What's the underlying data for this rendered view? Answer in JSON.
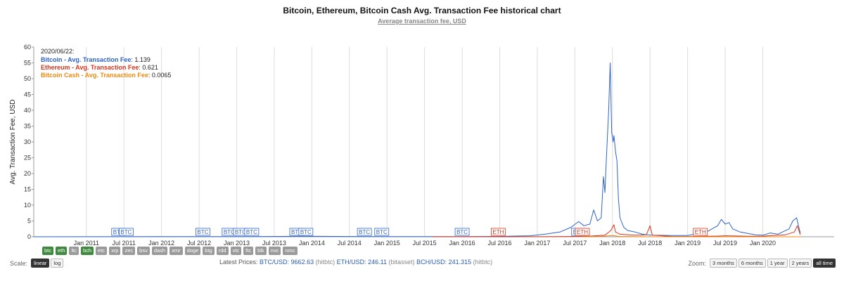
{
  "header": {
    "title": "Bitcoin, Ethereum, Bitcoin Cash Avg. Transaction Fee historical chart",
    "subtitle": "Average transaction fee, USD"
  },
  "tooltip": {
    "date": "2020/06/22:",
    "rows": [
      {
        "label": "Bitcoin - Avg. Transaction Fee",
        "value": "1.139",
        "color": "#2e63c8"
      },
      {
        "label": "Ethereum - Avg. Transaction Fee",
        "value": "0.621",
        "color": "#d6351c"
      },
      {
        "label": "Bitcoin Cash - Avg. Transaction Fee",
        "value": "0.0065",
        "color": "#f08a10"
      }
    ]
  },
  "chart_data": {
    "type": "line",
    "ylabel": "Avg. Transaction Fee, USD",
    "ylim": [
      0,
      60
    ],
    "yticks": [
      0,
      5,
      10,
      15,
      20,
      25,
      30,
      35,
      40,
      45,
      50,
      55,
      60
    ],
    "xlim": [
      2010.3,
      2020.95
    ],
    "xticks": [
      {
        "label": "Jan 2011",
        "t": 2011.0
      },
      {
        "label": "Jul 2011",
        "t": 2011.5
      },
      {
        "label": "Jan 2012",
        "t": 2012.0
      },
      {
        "label": "Jul 2012",
        "t": 2012.5
      },
      {
        "label": "Jan 2013",
        "t": 2013.0
      },
      {
        "label": "Jul 2013",
        "t": 2013.5
      },
      {
        "label": "Jan 2014",
        "t": 2014.0
      },
      {
        "label": "Jul 2014",
        "t": 2014.5
      },
      {
        "label": "Jan 2015",
        "t": 2015.0
      },
      {
        "label": "Jul 2015",
        "t": 2015.5
      },
      {
        "label": "Jan 2016",
        "t": 2016.0
      },
      {
        "label": "Jul 2016",
        "t": 2016.5
      },
      {
        "label": "Jan 2017",
        "t": 2017.0
      },
      {
        "label": "Jul 2017",
        "t": 2017.5
      },
      {
        "label": "Jan 2018",
        "t": 2018.0
      },
      {
        "label": "Jul 2018",
        "t": 2018.5
      },
      {
        "label": "Jan 2019",
        "t": 2019.0
      },
      {
        "label": "Jul 2019",
        "t": 2019.5
      },
      {
        "label": "Jan 2020",
        "t": 2020.0
      }
    ],
    "grid": true,
    "series": [
      {
        "name": "Bitcoin - Avg. Transaction Fee",
        "color": "#2e63c8",
        "points": [
          [
            2010.3,
            0.0
          ],
          [
            2012.0,
            0.05
          ],
          [
            2013.0,
            0.05
          ],
          [
            2013.9,
            0.15
          ],
          [
            2014.5,
            0.08
          ],
          [
            2015.0,
            0.05
          ],
          [
            2016.0,
            0.05
          ],
          [
            2016.5,
            0.12
          ],
          [
            2016.9,
            0.3
          ],
          [
            2017.1,
            0.8
          ],
          [
            2017.3,
            1.5
          ],
          [
            2017.45,
            3.0
          ],
          [
            2017.55,
            4.8
          ],
          [
            2017.62,
            3.5
          ],
          [
            2017.7,
            4.0
          ],
          [
            2017.75,
            8.5
          ],
          [
            2017.8,
            5.0
          ],
          [
            2017.85,
            6.0
          ],
          [
            2017.88,
            19.0
          ],
          [
            2017.9,
            14.0
          ],
          [
            2017.92,
            25.0
          ],
          [
            2017.95,
            40.0
          ],
          [
            2017.97,
            55.0
          ],
          [
            2017.99,
            33.0
          ],
          [
            2018.01,
            30.0
          ],
          [
            2018.02,
            32.0
          ],
          [
            2018.04,
            27.0
          ],
          [
            2018.06,
            24.0
          ],
          [
            2018.08,
            12.0
          ],
          [
            2018.1,
            6.0
          ],
          [
            2018.15,
            3.0
          ],
          [
            2018.2,
            2.0
          ],
          [
            2018.3,
            1.5
          ],
          [
            2018.4,
            0.8
          ],
          [
            2018.5,
            0.5
          ],
          [
            2018.8,
            0.4
          ],
          [
            2019.0,
            0.4
          ],
          [
            2019.25,
            1.5
          ],
          [
            2019.4,
            3.5
          ],
          [
            2019.45,
            5.5
          ],
          [
            2019.5,
            4.0
          ],
          [
            2019.55,
            4.5
          ],
          [
            2019.6,
            2.5
          ],
          [
            2019.7,
            1.5
          ],
          [
            2019.9,
            0.6
          ],
          [
            2020.0,
            0.5
          ],
          [
            2020.1,
            1.2
          ],
          [
            2020.2,
            0.8
          ],
          [
            2020.35,
            2.5
          ],
          [
            2020.4,
            5.0
          ],
          [
            2020.45,
            6.0
          ],
          [
            2020.48,
            3.0
          ],
          [
            2020.5,
            1.139
          ]
        ]
      },
      {
        "name": "Ethereum - Avg. Transaction Fee",
        "color": "#d6351c",
        "points": [
          [
            2015.6,
            0.0
          ],
          [
            2016.5,
            0.0
          ],
          [
            2017.0,
            0.02
          ],
          [
            2017.4,
            0.1
          ],
          [
            2017.7,
            0.2
          ],
          [
            2017.9,
            0.5
          ],
          [
            2017.98,
            2.0
          ],
          [
            2018.02,
            3.8
          ],
          [
            2018.04,
            1.5
          ],
          [
            2018.1,
            0.8
          ],
          [
            2018.3,
            0.5
          ],
          [
            2018.45,
            0.6
          ],
          [
            2018.5,
            3.5
          ],
          [
            2018.53,
            0.5
          ],
          [
            2018.8,
            0.1
          ],
          [
            2019.0,
            0.1
          ],
          [
            2019.4,
            0.2
          ],
          [
            2019.5,
            0.3
          ],
          [
            2019.8,
            0.15
          ],
          [
            2020.0,
            0.2
          ],
          [
            2020.3,
            0.6
          ],
          [
            2020.42,
            1.5
          ],
          [
            2020.46,
            3.5
          ],
          [
            2020.5,
            0.621
          ]
        ]
      },
      {
        "name": "Bitcoin Cash - Avg. Transaction Fee",
        "color": "#f08a10",
        "points": [
          [
            2017.6,
            0.0
          ],
          [
            2017.9,
            0.2
          ],
          [
            2018.0,
            0.4
          ],
          [
            2018.1,
            0.1
          ],
          [
            2018.5,
            0.01
          ],
          [
            2019.0,
            0.005
          ],
          [
            2020.0,
            0.004
          ],
          [
            2020.5,
            0.0065
          ]
        ]
      }
    ],
    "annotations": [
      {
        "text": "BTC",
        "t": 2011.43,
        "color": "#2e63c8"
      },
      {
        "text": "BTC",
        "t": 2011.53,
        "color": "#2e63c8"
      },
      {
        "text": "BTC",
        "t": 2012.55,
        "color": "#2e63c8"
      },
      {
        "text": "BTC",
        "t": 2012.9,
        "color": "#2e63c8"
      },
      {
        "text": "BTC",
        "t": 2013.05,
        "color": "#2e63c8"
      },
      {
        "text": "BTC",
        "t": 2013.2,
        "color": "#2e63c8"
      },
      {
        "text": "BTC",
        "t": 2013.8,
        "color": "#2e63c8"
      },
      {
        "text": "BTC",
        "t": 2013.92,
        "color": "#2e63c8"
      },
      {
        "text": "BTC",
        "t": 2014.7,
        "color": "#2e63c8"
      },
      {
        "text": "BTC",
        "t": 2014.93,
        "color": "#2e63c8"
      },
      {
        "text": "BTC",
        "t": 2016.0,
        "color": "#2e63c8"
      },
      {
        "text": "BTC",
        "t": 2017.55,
        "color": "#2e63c8"
      },
      {
        "text": "ETH",
        "t": 2016.48,
        "color": "#d6351c"
      },
      {
        "text": "ETH",
        "t": 2017.6,
        "color": "#d6351c"
      },
      {
        "text": "ETH",
        "t": 2019.17,
        "color": "#d6351c"
      }
    ]
  },
  "coin_tags": [
    {
      "label": "btc",
      "active": true
    },
    {
      "label": "eth",
      "active": true
    },
    {
      "label": "ltc",
      "active": false
    },
    {
      "label": "bch",
      "active": true
    },
    {
      "label": "etc",
      "active": false
    },
    {
      "label": "xrp",
      "active": false
    },
    {
      "label": "zec",
      "active": false
    },
    {
      "label": "bsv",
      "active": false
    },
    {
      "label": "dash",
      "active": false
    },
    {
      "label": "xmr",
      "active": false
    },
    {
      "label": "doge",
      "active": false
    },
    {
      "label": "btg",
      "active": false
    },
    {
      "label": "rdd",
      "active": false
    },
    {
      "label": "vtc",
      "active": false
    },
    {
      "label": "ftc",
      "active": false
    },
    {
      "label": "blk",
      "active": false
    },
    {
      "label": "nvc",
      "active": false
    },
    {
      "label": "nmc",
      "active": false
    }
  ],
  "scale": {
    "label": "Scale:",
    "linear": "linear",
    "log": "log"
  },
  "prices": {
    "label": "Latest Prices:",
    "btc": "BTC/USD: 9662.63",
    "btc_src": "(hitbtc)",
    "eth": "ETH/USD: 246.11",
    "eth_src": "(bitasset)",
    "bch": "BCH/USD: 241.315",
    "bch_src": "(hitbtc)"
  },
  "zoom": {
    "label": "Zoom:",
    "options": [
      "3 months",
      "6 months",
      "1 year",
      "2 years",
      "all time"
    ],
    "selected": "all time"
  }
}
